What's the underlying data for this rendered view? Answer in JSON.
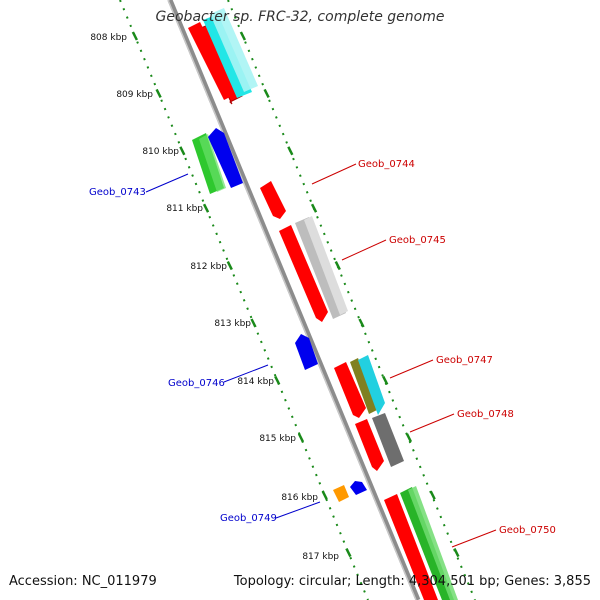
{
  "title": "Geobacter sp. FRC-32, complete genome",
  "footer": {
    "accession": "Accession: NC_011979",
    "summary": "Topology: circular; Length: 4,304,501 bp; Genes: 3,855"
  },
  "colors": {
    "backbone": "#8c8c8c",
    "tick": "#1a8a1a",
    "plus_label": "#cc0000",
    "minus_label": "#0000cc"
  },
  "tick_labels": [
    "808 kbp",
    "809 kbp",
    "810 kbp",
    "811 kbp",
    "812 kbp",
    "813 kbp",
    "814 kbp",
    "815 kbp",
    "816 kbp",
    "817 kbp"
  ],
  "gene_labels": [
    {
      "name": "Geob_0743",
      "strand": "minus"
    },
    {
      "name": "Geob_0744",
      "strand": "plus"
    },
    {
      "name": "Geob_0745",
      "strand": "plus"
    },
    {
      "name": "Geob_0746",
      "strand": "minus"
    },
    {
      "name": "Geob_0747",
      "strand": "plus"
    },
    {
      "name": "Geob_0748",
      "strand": "plus"
    },
    {
      "name": "Geob_0749",
      "strand": "minus"
    },
    {
      "name": "Geob_0750",
      "strand": "plus"
    }
  ]
}
